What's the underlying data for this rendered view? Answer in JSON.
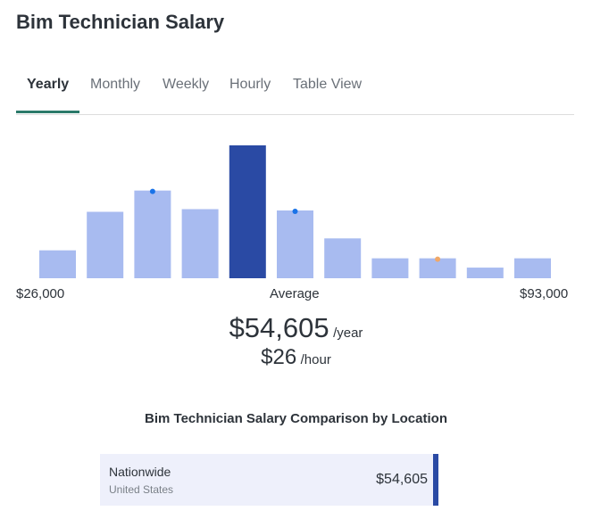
{
  "title": "Bim Technician Salary",
  "tabs": [
    {
      "label": "Yearly",
      "active": true
    },
    {
      "label": "Monthly"
    },
    {
      "label": "Weekly"
    },
    {
      "label": "Hourly"
    },
    {
      "label": "Table View"
    }
  ],
  "chart_data": {
    "type": "bar",
    "values_relative_percent": [
      21,
      50,
      66,
      52,
      100,
      51,
      30,
      15,
      15,
      8,
      15
    ],
    "highlight_index": 4,
    "markers": [
      {
        "index": 2,
        "color": "#1a73e8"
      },
      {
        "index": 5,
        "color": "#1a73e8"
      },
      {
        "index": 8,
        "color": "#f0a868"
      }
    ],
    "min_label": "$26,000",
    "center_label": "Average",
    "max_label": "$93,000",
    "colors": {
      "bar": "#a8bbf0",
      "highlight": "#2a4aa4"
    }
  },
  "average": {
    "yearly": "$54,605",
    "yearly_unit": "/year",
    "hourly": "$26",
    "hourly_unit": "/hour"
  },
  "comparison": {
    "title": "Bim Technician Salary Comparison by Location",
    "rows": [
      {
        "name": "Nationwide",
        "sub": "United States",
        "value": "$54,605"
      }
    ]
  }
}
